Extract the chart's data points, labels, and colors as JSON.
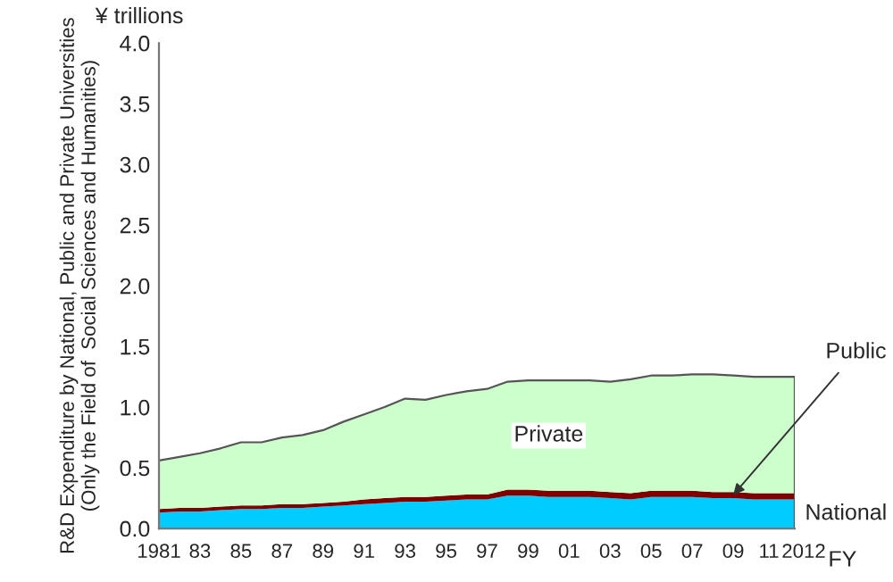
{
  "chart_data": {
    "type": "area",
    "stacked": true,
    "title": "¥ trillions",
    "xlabel": "FY",
    "ylabel": "R&D Expenditure by National, Public and Private Universities\n(Only the Field of  Social Sciences and Humanities)",
    "categories": [
      "1981",
      null,
      "83",
      null,
      "85",
      null,
      "87",
      null,
      "89",
      null,
      "91",
      null,
      "93",
      null,
      "95",
      null,
      "97",
      null,
      "99",
      null,
      "01",
      null,
      "03",
      null,
      "05",
      null,
      "07",
      null,
      "09",
      null,
      "11",
      "2012"
    ],
    "series": [
      {
        "name": "National",
        "color": "#00ccff",
        "values": [
          0.13,
          0.14,
          0.14,
          0.15,
          0.16,
          0.16,
          0.17,
          0.17,
          0.18,
          0.19,
          0.2,
          0.21,
          0.22,
          0.22,
          0.23,
          0.24,
          0.24,
          0.27,
          0.27,
          0.26,
          0.26,
          0.26,
          0.25,
          0.24,
          0.26,
          0.26,
          0.26,
          0.25,
          0.25,
          0.24,
          0.24,
          0.24
        ]
      },
      {
        "name": "Public",
        "color": "#800000",
        "values": [
          0.03,
          0.03,
          0.03,
          0.03,
          0.03,
          0.03,
          0.03,
          0.03,
          0.03,
          0.03,
          0.04,
          0.04,
          0.04,
          0.04,
          0.04,
          0.04,
          0.04,
          0.05,
          0.05,
          0.05,
          0.05,
          0.05,
          0.05,
          0.05,
          0.05,
          0.05,
          0.05,
          0.05,
          0.05,
          0.05,
          0.05,
          0.05
        ]
      },
      {
        "name": "Private",
        "color": "#ccffcc",
        "values": [
          0.4,
          0.42,
          0.45,
          0.48,
          0.52,
          0.52,
          0.55,
          0.57,
          0.6,
          0.66,
          0.7,
          0.75,
          0.81,
          0.8,
          0.83,
          0.85,
          0.87,
          0.89,
          0.9,
          0.91,
          0.91,
          0.91,
          0.91,
          0.94,
          0.95,
          0.95,
          0.96,
          0.97,
          0.96,
          0.96,
          0.96,
          0.96
        ]
      }
    ],
    "ylim": [
      0,
      4
    ],
    "yticks": [
      {
        "value": 0,
        "label": "0.0"
      },
      {
        "value": 0.5,
        "label": "0.5"
      },
      {
        "value": 1,
        "label": "1.0"
      },
      {
        "value": 1.5,
        "label": "1.5"
      },
      {
        "value": 2,
        "label": "2.0"
      },
      {
        "value": 2.5,
        "label": "2.5"
      },
      {
        "value": 3,
        "label": "3.0"
      },
      {
        "value": 3.5,
        "label": "3.5"
      },
      {
        "value": 4,
        "label": "4.0"
      }
    ],
    "grid": false,
    "legend": false
  }
}
